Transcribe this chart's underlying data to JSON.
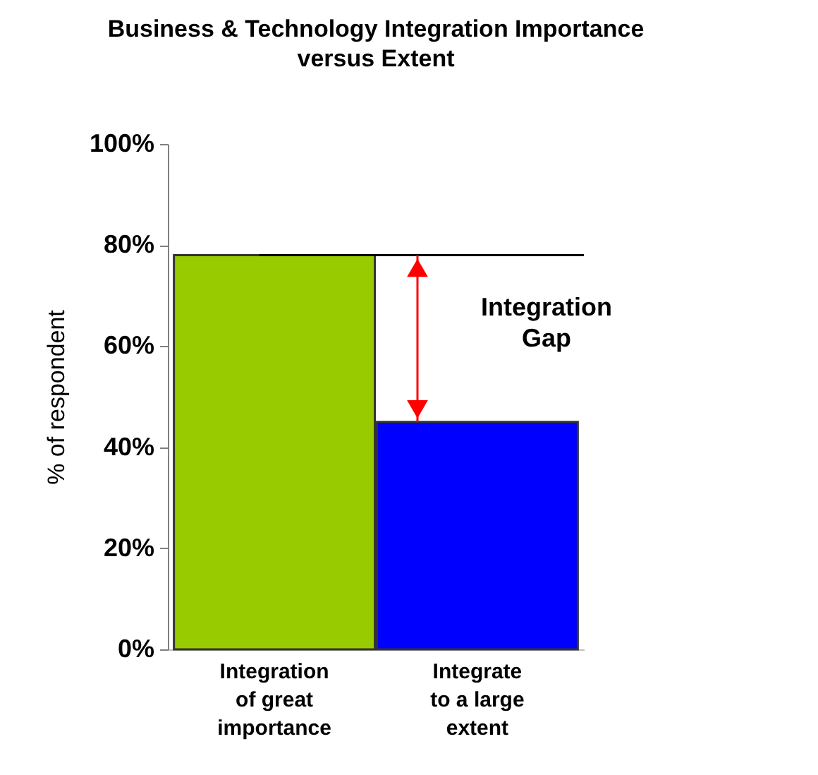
{
  "chart_data": {
    "type": "bar",
    "title": "Business & Technology Integration Importance versus Extent",
    "ylabel": "% of respondent",
    "categories": [
      "Integration of great importance",
      "Integrate to a large extent"
    ],
    "values": [
      78,
      45
    ],
    "colors": [
      "#99cc00",
      "#0000ff"
    ],
    "ylim": [
      0,
      100
    ],
    "yticks": [
      {
        "value": 0,
        "label": "0%"
      },
      {
        "value": 20,
        "label": "20%"
      },
      {
        "value": 40,
        "label": "40%"
      },
      {
        "value": 60,
        "label": "60%"
      },
      {
        "value": 80,
        "label": "80%"
      },
      {
        "value": 100,
        "label": "100%"
      }
    ],
    "grid": false,
    "ref_lines": [
      {
        "axis": "y",
        "value": 78,
        "color": "#000000"
      }
    ],
    "annotations": [
      "Integration Gap"
    ]
  }
}
